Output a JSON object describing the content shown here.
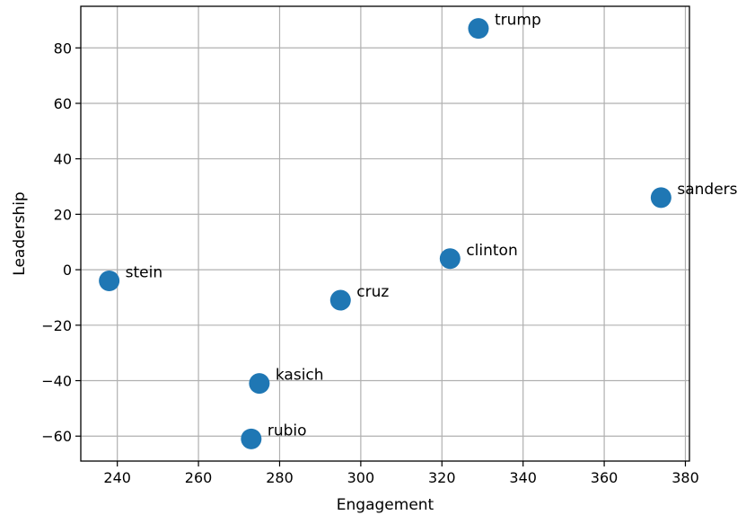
{
  "chart_data": {
    "type": "scatter",
    "title": "",
    "xlabel": "Engagement",
    "ylabel": "Leadership",
    "xlim": [
      231,
      381
    ],
    "ylim": [
      -69,
      95
    ],
    "xticks": [
      240,
      260,
      280,
      300,
      320,
      340,
      360,
      380
    ],
    "yticks": [
      -60,
      -40,
      -20,
      0,
      20,
      40,
      60,
      80
    ],
    "grid": true,
    "marker_color": "#1f77b4",
    "points": [
      {
        "label": "trump",
        "x": 329,
        "y": 87
      },
      {
        "label": "sanders",
        "x": 374,
        "y": 26
      },
      {
        "label": "clinton",
        "x": 322,
        "y": 4
      },
      {
        "label": "stein",
        "x": 238,
        "y": -4
      },
      {
        "label": "cruz",
        "x": 295,
        "y": -11
      },
      {
        "label": "kasich",
        "x": 275,
        "y": -41
      },
      {
        "label": "rubio",
        "x": 273,
        "y": -61
      }
    ]
  }
}
